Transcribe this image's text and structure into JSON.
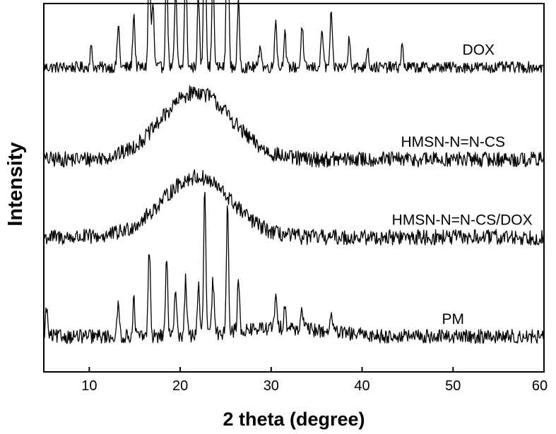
{
  "chart_data": {
    "type": "line",
    "title": "",
    "xlabel": "2 theta (degree)",
    "ylabel": "Intensity",
    "xlim": [
      5,
      60
    ],
    "xticks": [
      10,
      20,
      30,
      40,
      50,
      60
    ],
    "grid": false,
    "legend": "none",
    "y_ticks_shown": false,
    "series": [
      {
        "name": "DOX",
        "baseline": 4.3,
        "noise": 0.08,
        "hump": {
          "center": 0,
          "width": 1,
          "height": 0
        },
        "peaks": [
          [
            10.2,
            0.28
          ],
          [
            13.2,
            0.6
          ],
          [
            14.9,
            0.75
          ],
          [
            16.6,
            1.6
          ],
          [
            17.0,
            0.9
          ],
          [
            18.5,
            1.5
          ],
          [
            19.5,
            1.1
          ],
          [
            20.6,
            1.5
          ],
          [
            22.0,
            1.0
          ],
          [
            22.7,
            2.7
          ],
          [
            23.6,
            1.3
          ],
          [
            25.2,
            2.9
          ],
          [
            26.4,
            0.9
          ],
          [
            28.8,
            0.35
          ],
          [
            30.5,
            0.7
          ],
          [
            31.5,
            0.5
          ],
          [
            33.4,
            0.6
          ],
          [
            35.6,
            0.55
          ],
          [
            36.6,
            0.75
          ],
          [
            38.6,
            0.45
          ],
          [
            40.6,
            0.3
          ],
          [
            44.4,
            0.3
          ]
        ],
        "label": {
          "text": "DOX",
          "x": 52.8
        }
      },
      {
        "name": "HMSN-N=N-CS",
        "baseline": 3.0,
        "noise": 0.11,
        "hump": {
          "center": 21.8,
          "width": 3.8,
          "height": 0.95
        },
        "peaks": [],
        "label": {
          "text": "HMSN-N=N-CS",
          "x": 50.0
        }
      },
      {
        "name": "HMSN-N=N-CS/DOX",
        "baseline": 1.9,
        "noise": 0.11,
        "hump": {
          "center": 21.8,
          "width": 3.8,
          "height": 0.85
        },
        "peaks": [],
        "label": {
          "text": "HMSN-N=N-CS/DOX",
          "x": 51.0
        }
      },
      {
        "name": "PM",
        "baseline": 0.5,
        "noise": 0.1,
        "hump": {
          "center": 31,
          "width": 5,
          "height": 0.12
        },
        "peaks": [
          [
            5.3,
            0.4
          ],
          [
            13.2,
            0.45
          ],
          [
            14.9,
            0.5
          ],
          [
            16.6,
            1.25
          ],
          [
            18.5,
            1.1
          ],
          [
            19.5,
            0.7
          ],
          [
            20.6,
            0.8
          ],
          [
            22.0,
            0.7
          ],
          [
            22.7,
            2.05
          ],
          [
            23.6,
            0.75
          ],
          [
            25.2,
            1.85
          ],
          [
            26.4,
            0.7
          ],
          [
            30.5,
            0.45
          ],
          [
            31.5,
            0.35
          ],
          [
            33.4,
            0.3
          ],
          [
            36.6,
            0.3
          ]
        ],
        "label": {
          "text": "PM",
          "x": 50.0
        }
      }
    ]
  }
}
